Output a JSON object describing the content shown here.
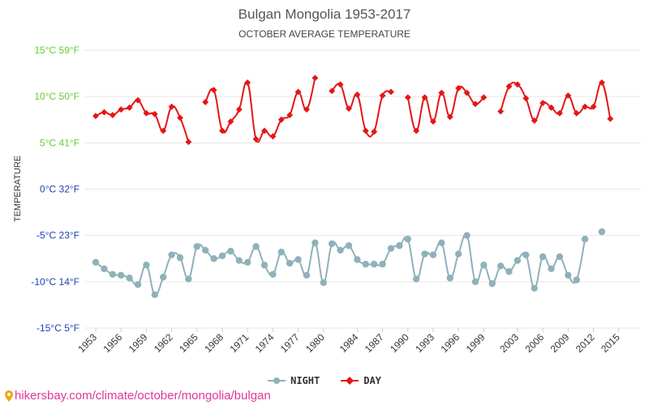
{
  "chart_data": {
    "type": "line",
    "title": "Bulgan Mongolia 1953-2017",
    "subtitle": "OCTOBER AVERAGE TEMPERATURE",
    "ylabel": "TEMPERATURE",
    "ylim": [
      -15,
      15
    ],
    "xlim": [
      1953,
      2017
    ],
    "grid": true,
    "y_ticks": [
      {
        "value": 15,
        "label": "15°C 59°F",
        "color": "#66cc33"
      },
      {
        "value": 10,
        "label": "10°C 50°F",
        "color": "#66cc33"
      },
      {
        "value": 5,
        "label": "5°C 41°F",
        "color": "#66cc33"
      },
      {
        "value": 0,
        "label": "0°C 32°F",
        "color": "#1f3fb5"
      },
      {
        "value": -5,
        "label": "-5°C 23°F",
        "color": "#1f3fb5"
      },
      {
        "value": -10,
        "label": "-10°C 14°F",
        "color": "#1f3fb5"
      },
      {
        "value": -15,
        "label": "-15°C 5°F",
        "color": "#1f3fb5"
      }
    ],
    "x_ticks": [
      "1953",
      "1956",
      "1959",
      "1962",
      "1965",
      "1968",
      "1971",
      "1974",
      "1977",
      "1980",
      "1984",
      "1987",
      "1990",
      "1993",
      "1996",
      "1999",
      "2003",
      "2006",
      "2009",
      "2012",
      "2015"
    ],
    "legend_position": "bottom",
    "series": [
      {
        "name": "NIGHT",
        "color": "#8fb1ba",
        "values": [
          [
            1953,
            -7.9
          ],
          [
            1954,
            -8.6
          ],
          [
            1955,
            -9.2
          ],
          [
            1956,
            -9.3
          ],
          [
            1957,
            -9.6
          ],
          [
            1958,
            -10.3
          ],
          [
            1959,
            -8.2
          ],
          [
            1960,
            -11.4
          ],
          [
            1961,
            -9.5
          ],
          [
            1962,
            -7.1
          ],
          [
            1963,
            -7.4
          ],
          [
            1964,
            -9.7
          ],
          [
            1965,
            -6.2
          ],
          [
            1966,
            -6.6
          ],
          [
            1967,
            -7.5
          ],
          [
            1968,
            -7.2
          ],
          [
            1969,
            -6.7
          ],
          [
            1970,
            -7.7
          ],
          [
            1971,
            -7.9
          ],
          [
            1972,
            -6.2
          ],
          [
            1973,
            -8.2
          ],
          [
            1974,
            -9.2
          ],
          [
            1975,
            -6.8
          ],
          [
            1976,
            -8.0
          ],
          [
            1977,
            -7.6
          ],
          [
            1978,
            -9.3
          ],
          [
            1979,
            -5.8
          ],
          [
            1980,
            -10.1
          ],
          [
            1981,
            -5.9
          ],
          [
            1982,
            -6.6
          ],
          [
            1983,
            -6.1
          ],
          [
            1984,
            -7.6
          ],
          [
            1985,
            -8.1
          ],
          [
            1986,
            -8.1
          ],
          [
            1987,
            -8.1
          ],
          [
            1988,
            -6.4
          ],
          [
            1989,
            -6.1
          ],
          [
            1990,
            -5.4
          ],
          [
            1991,
            -9.7
          ],
          [
            1992,
            -7.0
          ],
          [
            1993,
            -7.1
          ],
          [
            1994,
            -5.8
          ],
          [
            1995,
            -9.6
          ],
          [
            1996,
            -7.0
          ],
          [
            1997,
            -5.0
          ],
          [
            1998,
            -10.0
          ],
          [
            1999,
            -8.2
          ],
          [
            2000,
            -10.2
          ],
          [
            2001,
            -8.3
          ],
          [
            2002,
            -8.9
          ],
          [
            2003,
            -7.7
          ],
          [
            2004,
            -7.1
          ],
          [
            2005,
            -10.7
          ],
          [
            2006,
            -7.3
          ],
          [
            2007,
            -8.6
          ],
          [
            2008,
            -7.3
          ],
          [
            2009,
            -9.3
          ],
          [
            2010,
            -9.8
          ],
          [
            2011,
            -5.4
          ],
          [
            2012,
            null
          ],
          [
            2013,
            -4.6
          ]
        ]
      },
      {
        "name": "DAY",
        "color": "#e51616",
        "values": [
          [
            1953,
            7.9
          ],
          [
            1954,
            8.3
          ],
          [
            1955,
            8.0
          ],
          [
            1956,
            8.6
          ],
          [
            1957,
            8.8
          ],
          [
            1958,
            9.6
          ],
          [
            1959,
            8.2
          ],
          [
            1960,
            8.1
          ],
          [
            1961,
            6.3
          ],
          [
            1962,
            8.9
          ],
          [
            1963,
            7.7
          ],
          [
            1964,
            5.1
          ],
          [
            1965,
            null
          ],
          [
            1966,
            9.4
          ],
          [
            1967,
            10.7
          ],
          [
            1968,
            6.3
          ],
          [
            1969,
            7.3
          ],
          [
            1970,
            8.6
          ],
          [
            1971,
            11.5
          ],
          [
            1972,
            5.4
          ],
          [
            1973,
            6.3
          ],
          [
            1974,
            5.7
          ],
          [
            1975,
            7.5
          ],
          [
            1976,
            8.0
          ],
          [
            1977,
            10.5
          ],
          [
            1978,
            8.6
          ],
          [
            1979,
            12.0
          ],
          [
            1980,
            null
          ],
          [
            1981,
            10.6
          ],
          [
            1982,
            11.3
          ],
          [
            1983,
            8.7
          ],
          [
            1984,
            10.2
          ],
          [
            1985,
            6.3
          ],
          [
            1986,
            6.2
          ],
          [
            1987,
            10.1
          ],
          [
            1988,
            10.5
          ],
          [
            1989,
            null
          ],
          [
            1990,
            9.9
          ],
          [
            1991,
            6.3
          ],
          [
            1992,
            9.9
          ],
          [
            1993,
            7.3
          ],
          [
            1994,
            10.4
          ],
          [
            1995,
            7.8
          ],
          [
            1996,
            10.9
          ],
          [
            1997,
            10.4
          ],
          [
            1998,
            9.2
          ],
          [
            1999,
            9.9
          ],
          [
            2000,
            null
          ],
          [
            2001,
            8.4
          ],
          [
            2002,
            11.1
          ],
          [
            2003,
            11.3
          ],
          [
            2004,
            9.8
          ],
          [
            2005,
            7.4
          ],
          [
            2006,
            9.3
          ],
          [
            2007,
            8.8
          ],
          [
            2008,
            8.2
          ],
          [
            2009,
            10.1
          ],
          [
            2010,
            8.2
          ],
          [
            2011,
            8.9
          ],
          [
            2012,
            8.9
          ],
          [
            2013,
            11.5
          ],
          [
            2014,
            7.6
          ]
        ]
      }
    ]
  },
  "legend": {
    "items": [
      {
        "label": "NIGHT",
        "color": "#8fb1ba"
      },
      {
        "label": "DAY",
        "color": "#e51616"
      }
    ]
  },
  "source": {
    "text": "hikersbay.com/climate/october/mongolia/bulgan",
    "color": "#e0389a"
  }
}
